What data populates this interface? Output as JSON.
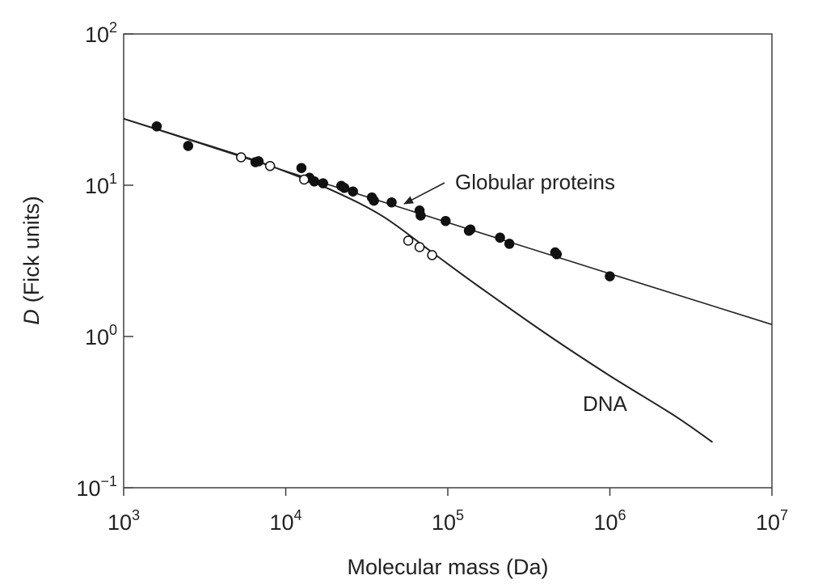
{
  "chart_data": {
    "type": "scatter",
    "xlabel": "Molecular mass (Da)",
    "ylabel": {
      "symbol": "D",
      "unit": "(Fick units)"
    },
    "x_scale": "log",
    "y_scale": "log",
    "xlim": [
      1000,
      10000000
    ],
    "ylim": [
      0.1,
      100
    ],
    "x_ticks": [
      {
        "base": "10",
        "exp": "3",
        "value": 1000
      },
      {
        "base": "10",
        "exp": "4",
        "value": 10000
      },
      {
        "base": "10",
        "exp": "5",
        "value": 100000
      },
      {
        "base": "10",
        "exp": "6",
        "value": 1000000
      },
      {
        "base": "10",
        "exp": "7",
        "value": 10000000
      }
    ],
    "y_ticks": [
      {
        "base": "10",
        "exp": "−1",
        "value": 0.1
      },
      {
        "base": "10",
        "exp": "0",
        "value": 1
      },
      {
        "base": "10",
        "exp": "1",
        "value": 10
      },
      {
        "base": "10",
        "exp": "2",
        "value": 100
      }
    ],
    "grid": false,
    "annotations": [
      {
        "text": "Globular proteins",
        "target": [
          55000,
          9.0
        ]
      },
      {
        "text": "DNA",
        "target": [
          1500000,
          0.55
        ]
      }
    ],
    "series": [
      {
        "marker": "filled-circle",
        "points": [
          [
            1600,
            24.5
          ],
          [
            2500,
            18.2
          ],
          [
            6500,
            14.2
          ],
          [
            6800,
            14.4
          ],
          [
            12500,
            13.0
          ],
          [
            14000,
            11.2
          ],
          [
            15000,
            10.6
          ],
          [
            17000,
            10.3
          ],
          [
            22000,
            9.9
          ],
          [
            23000,
            9.6
          ],
          [
            26000,
            9.1
          ],
          [
            34000,
            8.3
          ],
          [
            35000,
            7.9
          ],
          [
            45000,
            7.7
          ],
          [
            67000,
            6.8
          ],
          [
            68000,
            6.3
          ],
          [
            97000,
            5.8
          ],
          [
            135000,
            5.0
          ],
          [
            138000,
            5.1
          ],
          [
            210000,
            4.5
          ],
          [
            240000,
            4.1
          ],
          [
            460000,
            3.6
          ],
          [
            470000,
            3.5
          ],
          [
            1000000,
            2.5
          ]
        ]
      },
      {
        "marker": "open-circle",
        "points": [
          [
            5300,
            15.3
          ],
          [
            8000,
            13.4
          ],
          [
            13000,
            10.9
          ],
          [
            57000,
            4.3
          ],
          [
            67000,
            3.9
          ],
          [
            80000,
            3.45
          ]
        ]
      }
    ],
    "lines": [
      {
        "label": "Globular proteins",
        "style": "solid",
        "points": [
          [
            1000,
            27.5
          ],
          [
            10000,
            12.4
          ],
          [
            100000,
            5.67
          ],
          [
            1000000,
            2.6
          ],
          [
            10000000,
            1.2
          ]
        ]
      },
      {
        "label": "DNA",
        "style": "solid",
        "points": [
          [
            1000,
            27.5
          ],
          [
            3000,
            19.0
          ],
          [
            6000,
            15.0
          ],
          [
            10000,
            12.3
          ],
          [
            20000,
            9.1
          ],
          [
            40000,
            6.2
          ],
          [
            80000,
            3.6
          ],
          [
            150000,
            2.2
          ],
          [
            400000,
            1.05
          ],
          [
            1000000,
            0.55
          ],
          [
            2500000,
            0.3
          ],
          [
            4300000,
            0.2
          ]
        ]
      }
    ]
  }
}
